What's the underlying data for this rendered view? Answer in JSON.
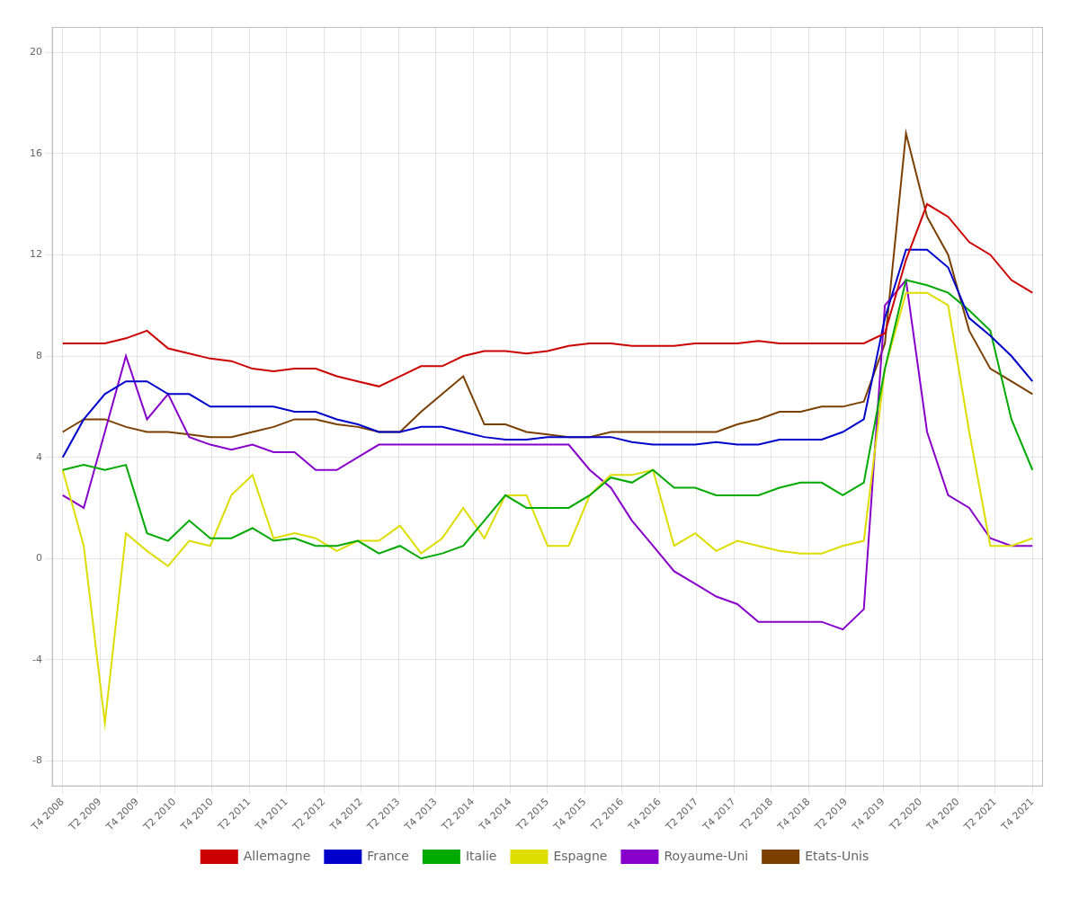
{
  "chart_data": {
    "type": "line",
    "x": [
      0,
      1,
      2,
      3,
      4,
      5,
      6,
      7,
      8,
      9,
      10,
      11,
      12,
      13,
      14,
      15,
      16,
      17,
      18,
      19,
      20,
      21,
      22,
      23,
      24,
      25,
      26,
      27,
      28,
      29,
      30,
      31,
      32,
      33,
      34,
      35,
      36,
      37,
      38,
      39,
      40,
      41,
      42,
      43,
      44,
      45,
      46
    ],
    "series": [
      {
        "name": "Allemagne",
        "color": "#cc0000",
        "values": [
          8.5,
          8.5,
          8.5,
          8.7,
          9.0,
          8.3,
          8.1,
          7.9,
          7.8,
          7.5,
          7.4,
          7.5,
          7.5,
          7.2,
          7.0,
          6.8,
          7.2,
          7.6,
          7.6,
          8.0,
          8.2,
          8.2,
          8.1,
          8.2,
          8.4,
          8.5,
          8.5,
          8.4,
          8.4,
          8.4,
          8.5,
          8.5,
          8.5,
          8.6,
          8.5,
          8.5,
          8.5,
          8.5,
          8.5,
          8.9,
          11.8,
          14.0,
          13.5,
          12.5,
          12.0,
          11.0,
          10.5
        ]
      },
      {
        "name": "France",
        "color": "#0000cc",
        "values": [
          4.0,
          5.5,
          6.5,
          7.0,
          7.0,
          6.5,
          6.5,
          6.0,
          6.0,
          6.0,
          6.0,
          5.8,
          5.8,
          5.5,
          5.3,
          5.0,
          5.0,
          5.2,
          5.2,
          5.0,
          4.8,
          4.7,
          4.7,
          4.8,
          4.8,
          4.8,
          4.8,
          4.6,
          4.5,
          4.5,
          4.5,
          4.6,
          4.5,
          4.5,
          4.7,
          4.7,
          4.7,
          5.0,
          5.5,
          9.5,
          12.2,
          12.2,
          11.5,
          9.5,
          8.8,
          8.0,
          7.0
        ]
      },
      {
        "name": "Italie",
        "color": "#00aa00",
        "values": [
          3.5,
          3.7,
          3.5,
          3.7,
          1.0,
          0.7,
          1.5,
          0.8,
          0.8,
          1.2,
          0.7,
          0.8,
          0.5,
          0.5,
          0.7,
          0.2,
          0.5,
          0.0,
          0.2,
          0.5,
          1.5,
          2.5,
          2.0,
          2.0,
          2.0,
          2.5,
          3.2,
          3.0,
          3.5,
          2.8,
          2.8,
          2.5,
          2.5,
          2.5,
          2.8,
          3.0,
          3.0,
          2.5,
          3.0,
          7.5,
          11.0,
          10.8,
          10.5,
          9.8,
          9.0,
          5.5,
          3.5
        ]
      },
      {
        "name": "Espagne",
        "color": "#dddd00",
        "values": [
          3.5,
          0.5,
          -6.5,
          1.0,
          0.3,
          -0.3,
          0.7,
          0.5,
          2.5,
          3.3,
          0.8,
          1.0,
          0.8,
          0.3,
          0.7,
          0.7,
          1.3,
          0.2,
          0.8,
          2.0,
          0.8,
          2.5,
          2.5,
          0.5,
          0.5,
          2.5,
          3.3,
          3.3,
          3.5,
          0.5,
          1.0,
          0.3,
          0.7,
          0.5,
          0.3,
          0.2,
          0.2,
          0.5,
          0.7,
          7.5,
          10.5,
          10.5,
          10.0,
          5.0,
          0.5,
          0.5,
          0.8
        ]
      },
      {
        "name": "Royaume-Uni",
        "color": "#8800cc",
        "values": [
          2.5,
          2.0,
          5.0,
          8.0,
          5.5,
          6.5,
          4.8,
          4.5,
          4.3,
          4.5,
          4.2,
          4.2,
          3.5,
          3.5,
          4.0,
          4.5,
          4.5,
          4.5,
          4.5,
          4.5,
          4.5,
          4.5,
          4.5,
          4.5,
          4.5,
          3.5,
          2.8,
          1.5,
          0.5,
          -0.5,
          -1.0,
          -1.5,
          -1.8,
          -2.5,
          -2.5,
          -2.5,
          -2.5,
          -2.8,
          -2.0,
          10.0,
          11.0,
          5.0,
          2.5,
          2.0,
          0.8,
          0.5,
          0.5
        ]
      },
      {
        "name": "Etats-Unis",
        "color": "#7B3F00",
        "values": [
          5.0,
          5.5,
          5.5,
          5.2,
          5.0,
          5.0,
          4.9,
          4.8,
          4.8,
          5.0,
          5.2,
          5.5,
          5.5,
          5.3,
          5.2,
          5.0,
          5.0,
          5.8,
          6.5,
          7.2,
          5.3,
          5.3,
          5.0,
          4.9,
          4.8,
          4.8,
          5.0,
          5.0,
          5.0,
          5.0,
          5.0,
          5.0,
          5.3,
          5.5,
          5.8,
          5.8,
          6.0,
          6.0,
          6.2,
          8.5,
          16.8,
          13.5,
          12.0,
          9.0,
          7.5,
          7.0,
          6.5
        ]
      }
    ],
    "xlim": [
      -0.5,
      46.5
    ],
    "xticks": [
      {
        "value": 0,
        "label": "T4 2008"
      },
      {
        "value": 1.769231,
        "label": "T2 2009"
      },
      {
        "value": 3.538462,
        "label": "T4 2009"
      },
      {
        "value": 5.307692,
        "label": "T2 2010"
      },
      {
        "value": 7.076923,
        "label": "T4 2010"
      },
      {
        "value": 8.846154,
        "label": "T2 2011"
      },
      {
        "value": 10.615385,
        "label": "T4 2011"
      },
      {
        "value": 12.384615,
        "label": "T2 2012"
      },
      {
        "value": 14.153846,
        "label": "T4 2012"
      },
      {
        "value": 15.923077,
        "label": "T2 2013"
      },
      {
        "value": 17.692308,
        "label": "T4 2013"
      },
      {
        "value": 19.461538,
        "label": "T2 2014"
      },
      {
        "value": 21.230769,
        "label": "T4 2014"
      },
      {
        "value": 23,
        "label": "T2 2015"
      },
      {
        "value": 24.769231,
        "label": "T4 2015"
      },
      {
        "value": 26.538462,
        "label": "T2 2016"
      },
      {
        "value": 28.307692,
        "label": "T4 2016"
      },
      {
        "value": 30.076923,
        "label": "T2 2017"
      },
      {
        "value": 31.846154,
        "label": "T4 2017"
      },
      {
        "value": 33.615385,
        "label": "T2 2018"
      },
      {
        "value": 35.384615,
        "label": "T4 2018"
      },
      {
        "value": 37.153846,
        "label": "T2 2019"
      },
      {
        "value": 38.923077,
        "label": "T4 2019"
      },
      {
        "value": 40.692308,
        "label": "T2 2020"
      },
      {
        "value": 42.461538,
        "label": "T4 2020"
      },
      {
        "value": 44.230769,
        "label": "T2 2021"
      },
      {
        "value": 46,
        "label": "T4 2021"
      }
    ],
    "ylim": [
      -9,
      21
    ],
    "yticks": [
      -8,
      -4,
      0,
      4,
      8,
      12,
      16,
      20
    ],
    "grid": true,
    "legend": "bottom"
  }
}
